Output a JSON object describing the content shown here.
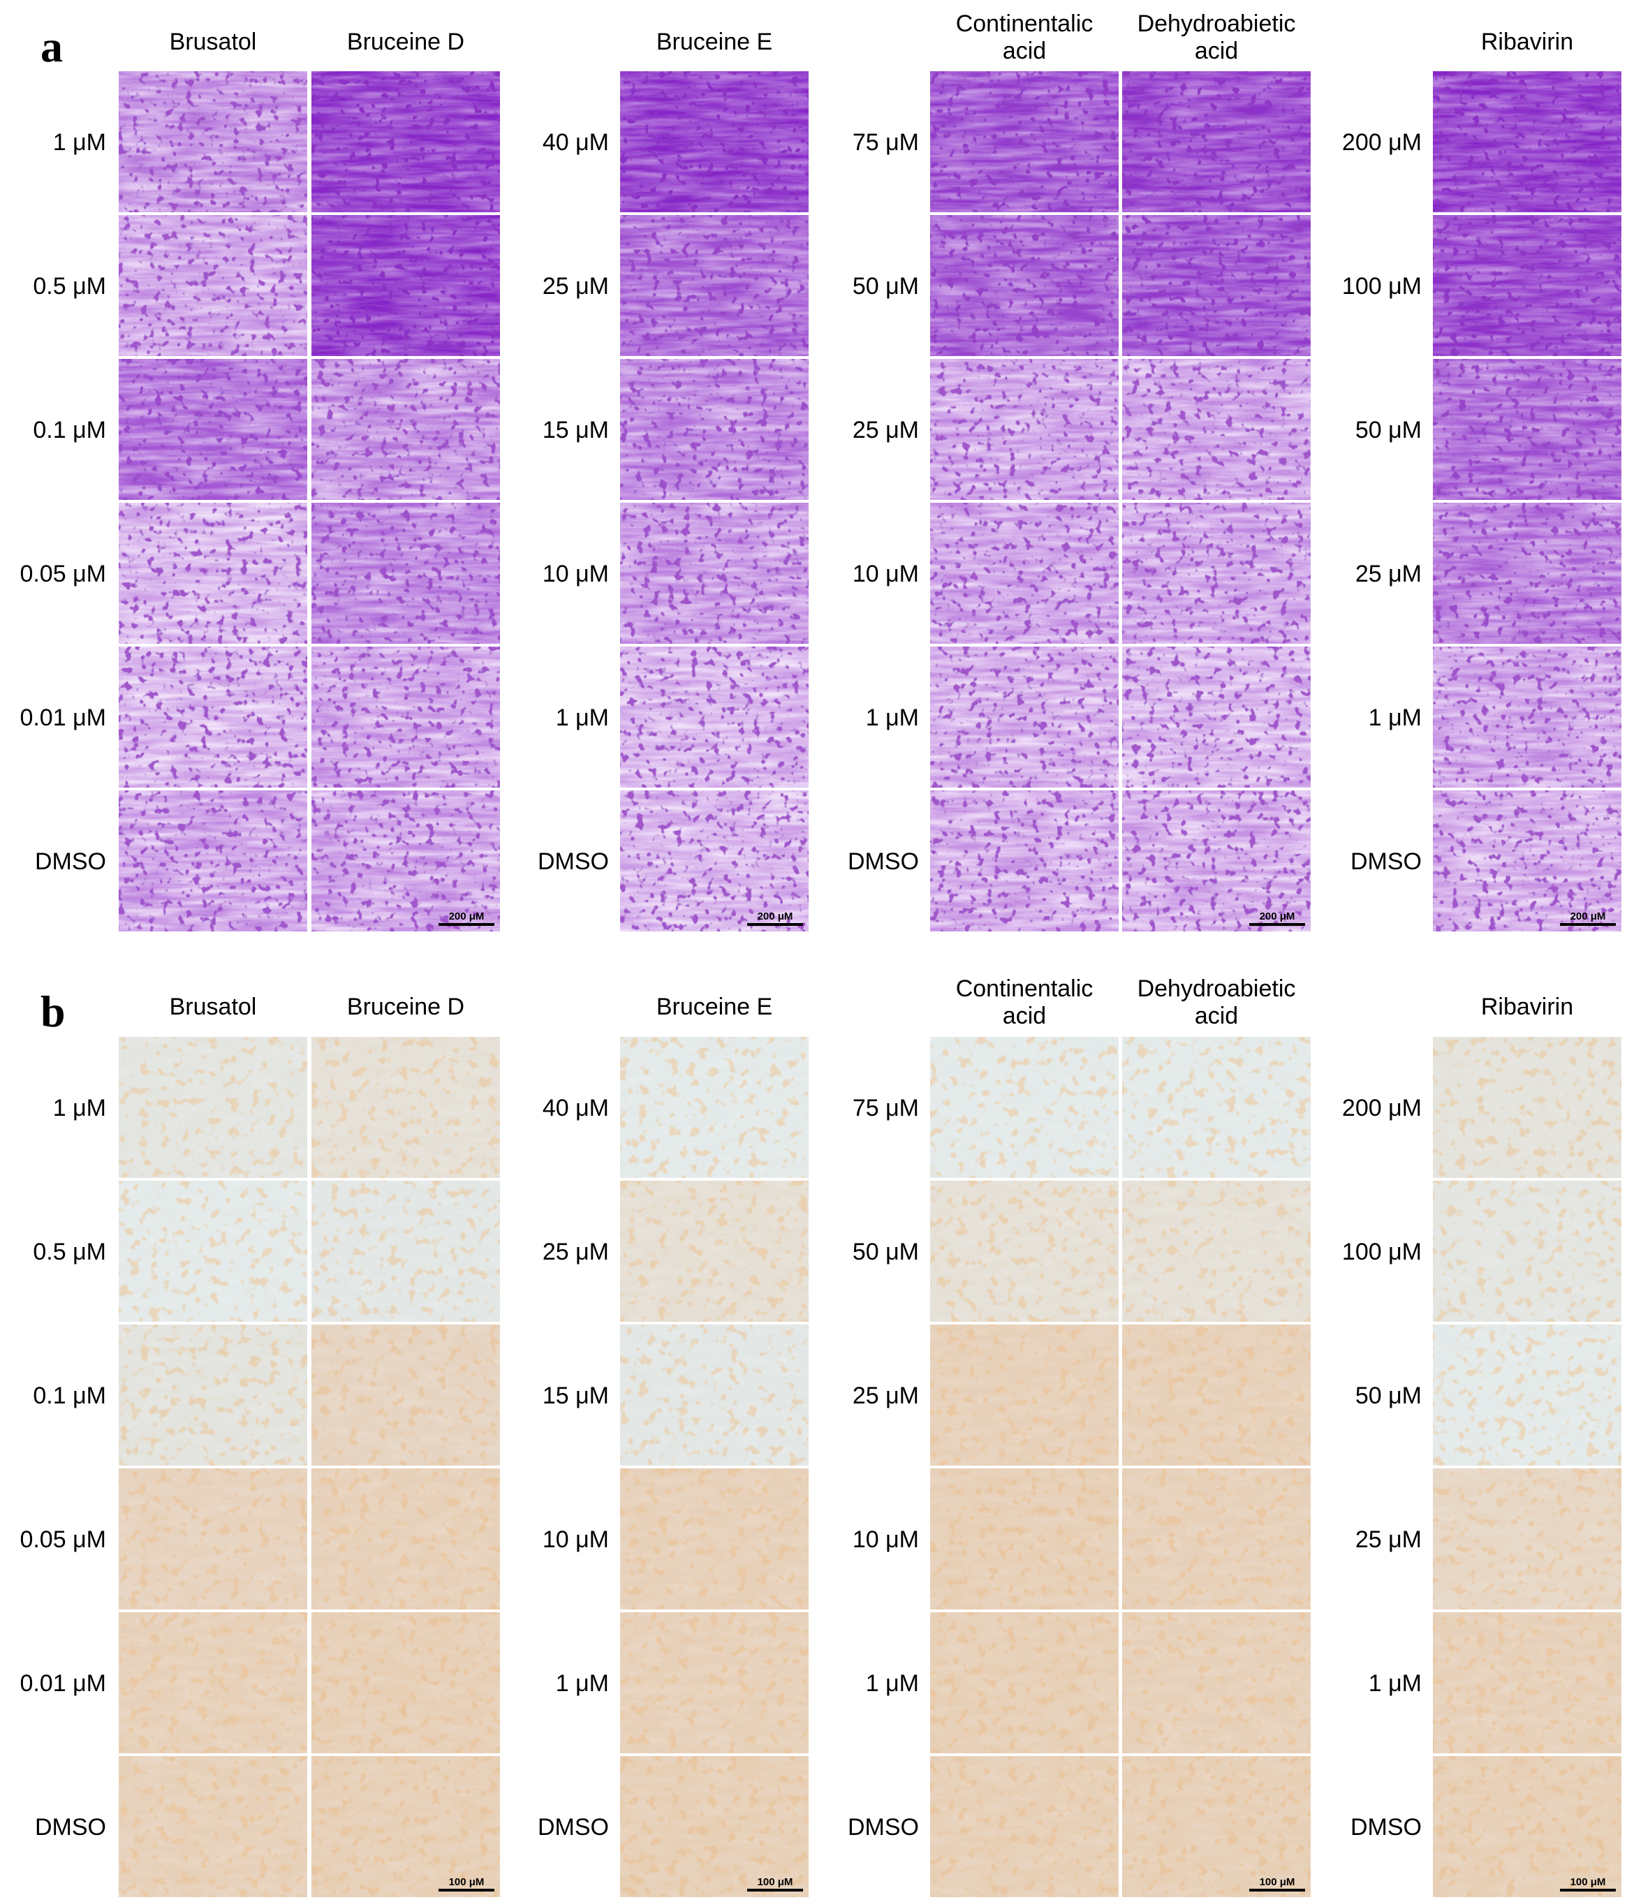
{
  "figure": {
    "panels": [
      {
        "letter": "a",
        "stain": "crystal-violet",
        "scale_label": "200 μM",
        "groups": [
          {
            "columns": [
              {
                "title": [
                  "Brusatol"
                ]
              },
              {
                "title": [
                  "Bruceine D"
                ]
              }
            ],
            "row_labels": [
              "1 μM",
              "0.5 μM",
              "0.1 μM",
              "0.05 μM",
              "0.01 μM",
              "DMSO"
            ],
            "stain_levels": [
              [
                0.55,
                0.95
              ],
              [
                0.45,
                0.95
              ],
              [
                0.7,
                0.55
              ],
              [
                0.35,
                0.6
              ],
              [
                0.35,
                0.45
              ],
              [
                0.45,
                0.45
              ]
            ]
          },
          {
            "columns": [
              {
                "title": [
                  "Bruceine E"
                ]
              }
            ],
            "row_labels": [
              "40 μM",
              "25 μM",
              "15 μM",
              "10 μM",
              "1 μM",
              "DMSO"
            ],
            "stain_levels": [
              [
                0.95
              ],
              [
                0.75
              ],
              [
                0.6
              ],
              [
                0.5
              ],
              [
                0.35
              ],
              [
                0.35
              ]
            ]
          },
          {
            "columns": [
              {
                "title": [
                  "Continentalic",
                  "acid"
                ]
              },
              {
                "title": [
                  "Dehydroabietic",
                  "acid"
                ]
              }
            ],
            "row_labels": [
              "75 μM",
              "50 μM",
              "25 μM",
              "10 μM",
              "1 μM",
              "DMSO"
            ],
            "stain_levels": [
              [
                0.85,
                0.9
              ],
              [
                0.8,
                0.85
              ],
              [
                0.45,
                0.45
              ],
              [
                0.45,
                0.45
              ],
              [
                0.4,
                0.35
              ],
              [
                0.4,
                0.4
              ]
            ]
          },
          {
            "columns": [
              {
                "title": [
                  "Ribavirin"
                ]
              }
            ],
            "row_labels": [
              "200 μM",
              "100 μM",
              "50 μM",
              "25 μM",
              "1 μM",
              "DMSO"
            ],
            "stain_levels": [
              [
                0.95
              ],
              [
                0.9
              ],
              [
                0.75
              ],
              [
                0.65
              ],
              [
                0.45
              ],
              [
                0.4
              ]
            ]
          }
        ]
      },
      {
        "letter": "b",
        "stain": "immunoperoxidase",
        "scale_label": "100 μM",
        "groups": [
          {
            "columns": [
              {
                "title": [
                  "Brusatol"
                ]
              },
              {
                "title": [
                  "Bruceine D"
                ]
              }
            ],
            "row_labels": [
              "1 μM",
              "0.5 μM",
              "0.1 μM",
              "0.05 μM",
              "0.01 μM",
              "DMSO"
            ],
            "stain_levels": [
              [
                0.15,
                0.3
              ],
              [
                0.05,
                0.1
              ],
              [
                0.2,
                0.6
              ],
              [
                0.65,
                0.7
              ],
              [
                0.7,
                0.75
              ],
              [
                0.7,
                0.75
              ]
            ]
          },
          {
            "columns": [
              {
                "title": [
                  "Bruceine E"
                ]
              }
            ],
            "row_labels": [
              "40 μM",
              "25 μM",
              "15 μM",
              "10 μM",
              "1 μM",
              "DMSO"
            ],
            "stain_levels": [
              [
                0.05
              ],
              [
                0.35
              ],
              [
                0.1
              ],
              [
                0.7
              ],
              [
                0.7
              ],
              [
                0.75
              ]
            ]
          },
          {
            "columns": [
              {
                "title": [
                  "Continentalic",
                  "acid"
                ]
              },
              {
                "title": [
                  "Dehydroabietic",
                  "acid"
                ]
              }
            ],
            "row_labels": [
              "75 μM",
              "50 μM",
              "25 μM",
              "10 μM",
              "1 μM",
              "DMSO"
            ],
            "stain_levels": [
              [
                0.05,
                0.05
              ],
              [
                0.3,
                0.3
              ],
              [
                0.7,
                0.7
              ],
              [
                0.75,
                0.7
              ],
              [
                0.75,
                0.7
              ],
              [
                0.75,
                0.75
              ]
            ]
          },
          {
            "columns": [
              {
                "title": [
                  "Ribavirin"
                ]
              }
            ],
            "row_labels": [
              "200 μM",
              "100 μM",
              "50 μM",
              "25 μM",
              "1 μM",
              "DMSO"
            ],
            "stain_levels": [
              [
                0.25
              ],
              [
                0.15
              ],
              [
                0.05
              ],
              [
                0.55
              ],
              [
                0.7
              ],
              [
                0.75
              ]
            ]
          }
        ]
      }
    ]
  }
}
